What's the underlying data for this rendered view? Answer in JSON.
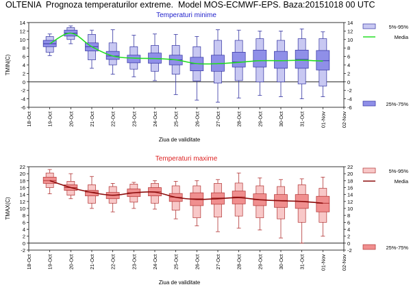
{
  "header": {
    "title": "OLTENIA  Prognoza temperaturilor extreme.  Model MOS-ECMWF-EPS. Baza:20151018 00 UTC"
  },
  "chart_data": [
    {
      "type": "boxplot",
      "title": "Temperaturi minime",
      "title_color": "#2222cc",
      "ylabel": "TMIN(C)",
      "xlabel": "Ziua de validitate",
      "ylim": [
        -6,
        14
      ],
      "yticks": [
        -6,
        -4,
        -2,
        0,
        2,
        4,
        6,
        8,
        10,
        12,
        14
      ],
      "x_ticks": [
        "18-Oct",
        "19-Oct",
        "20-Oct",
        "21-Oct",
        "22-Oct",
        "23-Oct",
        "24-Oct",
        "25-Oct",
        "26-Oct",
        "27-Oct",
        "28-Oct",
        "29-Oct",
        "30-Oct",
        "31-Oct",
        "01-Nov",
        "02-Nov"
      ],
      "box_fill": "#8f8fe8",
      "box_fill_light": "#c8c8f2",
      "box_edge": "#3030a0",
      "mean_color": "#22dd22",
      "legend": {
        "outer": "5%-95%",
        "mean": "Media",
        "inner": "25%-75%"
      },
      "series": [
        {
          "date": "19-Oct",
          "p5": 7.0,
          "p25": 8.3,
          "p75": 9.8,
          "p95": 10.7,
          "whisk_lo": 6.2,
          "whisk_hi": 11.3,
          "median": 9.0,
          "mean": 9.0
        },
        {
          "date": "20-Oct",
          "p5": 10.0,
          "p25": 10.8,
          "p75": 12.2,
          "p95": 12.8,
          "whisk_lo": 9.0,
          "whisk_hi": 13.2,
          "median": 11.5,
          "mean": 11.5
        },
        {
          "date": "21-Oct",
          "p5": 5.2,
          "p25": 7.3,
          "p75": 9.2,
          "p95": 11.2,
          "whisk_lo": 3.2,
          "whisk_hi": 12.2,
          "median": 8.3,
          "mean": 8.3
        },
        {
          "date": "22-Oct",
          "p5": 4.0,
          "p25": 5.3,
          "p75": 7.2,
          "p95": 9.2,
          "whisk_lo": 1.8,
          "whisk_hi": 12.3,
          "median": 6.1,
          "mean": 6.1
        },
        {
          "date": "23-Oct",
          "p5": 3.0,
          "p25": 4.5,
          "p75": 6.3,
          "p95": 8.3,
          "whisk_lo": 1.2,
          "whisk_hi": 11.0,
          "median": 5.6,
          "mean": 5.6
        },
        {
          "date": "24-Oct",
          "p5": 2.5,
          "p25": 4.4,
          "p75": 6.8,
          "p95": 8.6,
          "whisk_lo": 0.3,
          "whisk_hi": 11.3,
          "median": 5.5,
          "mean": 5.5
        },
        {
          "date": "25-Oct",
          "p5": 1.8,
          "p25": 4.0,
          "p75": 6.3,
          "p95": 8.6,
          "whisk_lo": -3.0,
          "whisk_hi": 11.2,
          "median": 5.2,
          "mean": 5.2
        },
        {
          "date": "26-Oct",
          "p5": 0.2,
          "p25": 2.6,
          "p75": 5.8,
          "p95": 8.3,
          "whisk_lo": -4.3,
          "whisk_hi": 10.7,
          "median": 4.3,
          "mean": 4.3
        },
        {
          "date": "27-Oct",
          "p5": -0.3,
          "p25": 2.5,
          "p75": 6.3,
          "p95": 9.8,
          "whisk_lo": -4.8,
          "whisk_hi": 12.3,
          "median": 4.3,
          "mean": 4.3
        },
        {
          "date": "28-Oct",
          "p5": 0.3,
          "p25": 3.5,
          "p75": 7.0,
          "p95": 9.8,
          "whisk_lo": -3.8,
          "whisk_hi": 12.2,
          "median": 4.7,
          "mean": 4.6
        },
        {
          "date": "29-Oct",
          "p5": 0.0,
          "p25": 3.5,
          "p75": 7.5,
          "p95": 10.2,
          "whisk_lo": -3.2,
          "whisk_hi": 12.0,
          "median": 5.0,
          "mean": 5.0
        },
        {
          "date": "30-Oct",
          "p5": 0.0,
          "p25": 3.2,
          "p75": 7.2,
          "p95": 9.8,
          "whisk_lo": -3.5,
          "whisk_hi": 12.0,
          "median": 5.0,
          "mean": 5.0
        },
        {
          "date": "31-Oct",
          "p5": -0.5,
          "p25": 3.2,
          "p75": 7.5,
          "p95": 10.2,
          "whisk_lo": -4.0,
          "whisk_hi": 12.5,
          "median": 5.3,
          "mean": 5.1
        },
        {
          "date": "01-Nov",
          "p5": -1.0,
          "p25": 2.8,
          "p75": 7.4,
          "p95": 10.2,
          "whisk_lo": -3.5,
          "whisk_hi": 11.8,
          "median": 5.0,
          "mean": 4.9
        }
      ]
    },
    {
      "type": "boxplot",
      "title": "Temperaturi maxime",
      "title_color": "#dd2222",
      "ylabel": "TMAX(C)",
      "xlabel": "Ziua de validitate",
      "ylim": [
        -2,
        22
      ],
      "yticks": [
        -2,
        0,
        2,
        4,
        6,
        8,
        10,
        12,
        14,
        16,
        18,
        20,
        22
      ],
      "x_ticks": [
        "18-Oct",
        "19-Oct",
        "20-Oct",
        "21-Oct",
        "22-Oct",
        "23-Oct",
        "24-Oct",
        "25-Oct",
        "26-Oct",
        "27-Oct",
        "28-Oct",
        "29-Oct",
        "30-Oct",
        "31-Oct",
        "01-Nov",
        "02-Nov"
      ],
      "box_fill": "#f08f8f",
      "box_fill_light": "#f8c8c8",
      "box_edge": "#b03030",
      "mean_color": "#8b0a0a",
      "legend": {
        "outer": "5%-95%",
        "mean": "Media",
        "inner": "25%-75%"
      },
      "series": [
        {
          "date": "19-Oct",
          "p5": 16.0,
          "p25": 17.2,
          "p75": 19.0,
          "p95": 20.2,
          "whisk_lo": 14.2,
          "whisk_hi": 21.2,
          "median": 18.0,
          "mean": 18.0
        },
        {
          "date": "20-Oct",
          "p5": 13.8,
          "p25": 15.2,
          "p75": 16.8,
          "p95": 17.8,
          "whisk_lo": 12.8,
          "whisk_hi": 20.0,
          "median": 16.0,
          "mean": 16.0
        },
        {
          "date": "21-Oct",
          "p5": 11.5,
          "p25": 13.6,
          "p75": 15.2,
          "p95": 16.8,
          "whisk_lo": 10.0,
          "whisk_hi": 19.2,
          "median": 14.7,
          "mean": 14.6
        },
        {
          "date": "22-Oct",
          "p5": 11.5,
          "p25": 12.8,
          "p75": 14.6,
          "p95": 16.3,
          "whisk_lo": 9.0,
          "whisk_hi": 17.2,
          "median": 13.8,
          "mean": 13.8
        },
        {
          "date": "23-Oct",
          "p5": 11.8,
          "p25": 13.4,
          "p75": 15.6,
          "p95": 17.0,
          "whisk_lo": 10.0,
          "whisk_hi": 17.5,
          "median": 14.5,
          "mean": 14.5
        },
        {
          "date": "24-Oct",
          "p5": 11.5,
          "p25": 13.6,
          "p75": 16.0,
          "p95": 17.2,
          "whisk_lo": 9.8,
          "whisk_hi": 18.0,
          "median": 14.8,
          "mean": 14.7
        },
        {
          "date": "25-Oct",
          "p5": 9.5,
          "p25": 12.0,
          "p75": 14.3,
          "p95": 16.5,
          "whisk_lo": 7.0,
          "whisk_hi": 17.8,
          "median": 13.2,
          "mean": 13.2
        },
        {
          "date": "26-Oct",
          "p5": 7.3,
          "p25": 10.8,
          "p75": 14.5,
          "p95": 16.5,
          "whisk_lo": 5.0,
          "whisk_hi": 18.0,
          "median": 12.8,
          "mean": 12.6
        },
        {
          "date": "27-Oct",
          "p5": 7.5,
          "p25": 11.2,
          "p75": 14.5,
          "p95": 17.2,
          "whisk_lo": 3.3,
          "whisk_hi": 18.3,
          "median": 13.0,
          "mean": 12.8
        },
        {
          "date": "28-Oct",
          "p5": 7.8,
          "p25": 11.3,
          "p75": 15.0,
          "p95": 17.3,
          "whisk_lo": 4.3,
          "whisk_hi": 20.2,
          "median": 13.3,
          "mean": 13.1
        },
        {
          "date": "29-Oct",
          "p5": 7.3,
          "p25": 10.8,
          "p75": 14.2,
          "p95": 16.5,
          "whisk_lo": 3.8,
          "whisk_hi": 18.8,
          "median": 12.5,
          "mean": 12.5
        },
        {
          "date": "30-Oct",
          "p5": 7.0,
          "p25": 10.3,
          "p75": 14.0,
          "p95": 16.3,
          "whisk_lo": 1.5,
          "whisk_hi": 18.3,
          "median": 12.3,
          "mean": 12.2
        },
        {
          "date": "31-Oct",
          "p5": 6.0,
          "p25": 10.0,
          "p75": 14.0,
          "p95": 16.8,
          "whisk_lo": 0.0,
          "whisk_hi": 18.5,
          "median": 12.0,
          "mean": 12.0
        },
        {
          "date": "01-Nov",
          "p5": 6.0,
          "p25": 9.0,
          "p75": 13.5,
          "p95": 15.8,
          "whisk_lo": 2.0,
          "whisk_hi": 19.0,
          "median": 11.5,
          "mean": 11.5
        }
      ]
    }
  ]
}
